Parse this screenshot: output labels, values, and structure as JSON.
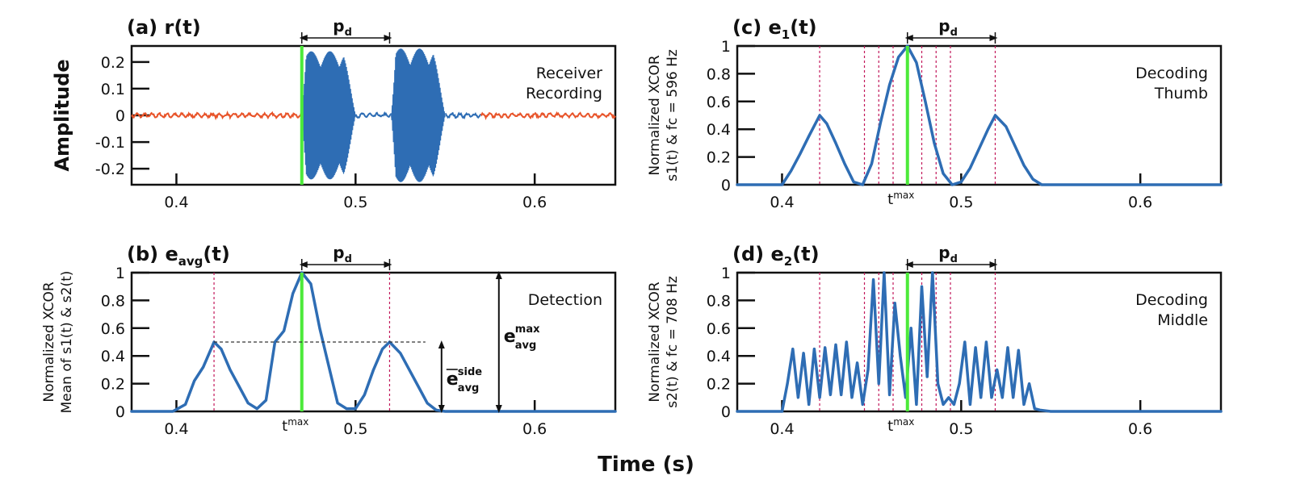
{
  "figure": {
    "xlabel": "Time (s)"
  },
  "chart_data": [
    {
      "id": "a",
      "type": "line",
      "title": "(a) r(t)",
      "ylabel_lines": [
        "Amplitude"
      ],
      "annotation_lines": [
        "Receiver",
        "Recording"
      ],
      "xlim": [
        0.375,
        0.645
      ],
      "ylim": [
        -0.26,
        0.26
      ],
      "xticks": [
        0.4,
        0.5,
        0.6
      ],
      "xtick_labels": [
        "0.4",
        "0.5",
        "0.6"
      ],
      "yticks": [
        0.2,
        0.1,
        0,
        -0.1,
        -0.2
      ],
      "ytick_labels": [
        "0.2",
        "0.1",
        "0",
        "-0.1",
        "-0.2"
      ],
      "onset_time": 0.47,
      "pd_label": "p",
      "pd_sub": "d",
      "pd_range": [
        0.47,
        0.519
      ],
      "colors": {
        "noise": "#e8542a",
        "signal": "#2e6db4",
        "marker": "#4cea3a"
      },
      "series": [
        {
          "segment": "noise",
          "x_range": [
            0.375,
            0.47
          ],
          "amplitude": 0.01
        },
        {
          "segment": "burst",
          "x_range": [
            0.47,
            0.5
          ],
          "amplitude": 0.24
        },
        {
          "segment": "gap",
          "x_range": [
            0.5,
            0.52
          ],
          "amplitude": 0.01
        },
        {
          "segment": "burst",
          "x_range": [
            0.52,
            0.55
          ],
          "amplitude": 0.25
        },
        {
          "segment": "tail",
          "x_range": [
            0.55,
            0.57
          ],
          "amplitude": 0.01
        },
        {
          "segment": "noise",
          "x_range": [
            0.57,
            0.645
          ],
          "amplitude": 0.01
        }
      ]
    },
    {
      "id": "b",
      "type": "line",
      "title": "(b) e",
      "title_sub": "avg",
      "title_tail": "(t)",
      "ylabel_lines": [
        "Normalized XCOR",
        "Mean of s1(t) & s2(t)"
      ],
      "annotation_lines": [
        "Detection"
      ],
      "xlim": [
        0.375,
        0.645
      ],
      "ylim": [
        0,
        1
      ],
      "xticks": [
        0.4,
        0.5,
        0.6
      ],
      "xtick_labels": [
        "0.4",
        "0.5",
        "0.6"
      ],
      "yticks": [
        1,
        0.8,
        0.6,
        0.4,
        0.2,
        0
      ],
      "ytick_labels": [
        "1",
        "0.8",
        "0.6",
        "0.4",
        "0.2",
        "0"
      ],
      "tmax": 0.47,
      "tmax_label": "t",
      "tmax_sup": "max",
      "pd_label": "p",
      "pd_sub": "d",
      "pd_range": [
        0.47,
        0.519
      ],
      "dashed_lines": [
        0.421,
        0.519
      ],
      "side_level": 0.5,
      "side_label": {
        "main": "e",
        "sup": "side",
        "sub": "avg"
      },
      "max_label": {
        "main": "e",
        "sup": "max",
        "sub": "avg"
      },
      "series": [
        {
          "x": [
            0.375,
            0.398,
            0.405,
            0.41,
            0.415,
            0.421,
            0.425,
            0.43,
            0.435,
            0.44,
            0.445,
            0.45,
            0.455,
            0.46,
            0.465,
            0.47,
            0.475,
            0.48,
            0.485,
            0.49,
            0.495,
            0.5,
            0.505,
            0.51,
            0.515,
            0.519,
            0.525,
            0.53,
            0.535,
            0.54,
            0.545,
            0.55,
            0.645
          ],
          "y": [
            0,
            0,
            0.05,
            0.22,
            0.32,
            0.5,
            0.45,
            0.3,
            0.18,
            0.06,
            0.02,
            0.08,
            0.5,
            0.58,
            0.85,
            1.0,
            0.92,
            0.6,
            0.33,
            0.06,
            0.02,
            0.02,
            0.12,
            0.3,
            0.45,
            0.5,
            0.42,
            0.3,
            0.18,
            0.06,
            0.01,
            0,
            0
          ]
        }
      ]
    },
    {
      "id": "c",
      "type": "line",
      "title": "(c) e",
      "title_sub": "1",
      "title_tail": "(t)",
      "ylabel_lines": [
        "Normalized XCOR",
        "s1(t) & fc = 596 Hz"
      ],
      "annotation_lines": [
        "Decoding",
        "Thumb"
      ],
      "xlim": [
        0.375,
        0.645
      ],
      "ylim": [
        0,
        1
      ],
      "xticks": [
        0.4,
        0.5,
        0.6
      ],
      "xtick_labels": [
        "0.4",
        "0.5",
        "0.6"
      ],
      "yticks": [
        1,
        0.8,
        0.6,
        0.4,
        0.2,
        0
      ],
      "ytick_labels": [
        "1",
        "0.8",
        "0.6",
        "0.4",
        "0.2",
        "0"
      ],
      "tmax": 0.47,
      "tmax_label": "t",
      "tmax_sup": "max",
      "pd_label": "p",
      "pd_sub": "d",
      "pd_range": [
        0.47,
        0.519
      ],
      "dashed_lines": [
        0.421,
        0.446,
        0.454,
        0.462,
        0.478,
        0.486,
        0.494,
        0.519
      ],
      "series": [
        {
          "x": [
            0.375,
            0.4,
            0.405,
            0.41,
            0.415,
            0.421,
            0.425,
            0.43,
            0.435,
            0.44,
            0.445,
            0.45,
            0.455,
            0.46,
            0.465,
            0.47,
            0.475,
            0.48,
            0.485,
            0.49,
            0.495,
            0.5,
            0.505,
            0.51,
            0.515,
            0.519,
            0.525,
            0.53,
            0.535,
            0.54,
            0.545,
            0.645
          ],
          "y": [
            0,
            0,
            0.1,
            0.22,
            0.35,
            0.5,
            0.44,
            0.3,
            0.15,
            0.02,
            0,
            0.15,
            0.45,
            0.72,
            0.92,
            1.0,
            0.88,
            0.6,
            0.3,
            0.08,
            0,
            0.02,
            0.12,
            0.26,
            0.4,
            0.5,
            0.42,
            0.28,
            0.14,
            0.04,
            0,
            0
          ]
        }
      ]
    },
    {
      "id": "d",
      "type": "line",
      "title": "(d) e",
      "title_sub": "2",
      "title_tail": "(t)",
      "ylabel_lines": [
        "Normalized XCOR",
        "s2(t) & fc = 708 Hz"
      ],
      "annotation_lines": [
        "Decoding",
        "Middle"
      ],
      "xlim": [
        0.375,
        0.645
      ],
      "ylim": [
        0,
        1
      ],
      "xticks": [
        0.4,
        0.5,
        0.6
      ],
      "xtick_labels": [
        "0.4",
        "0.5",
        "0.6"
      ],
      "yticks": [
        1,
        0.8,
        0.6,
        0.4,
        0.2,
        0
      ],
      "ytick_labels": [
        "1",
        "0.8",
        "0.6",
        "0.4",
        "0.2",
        "0"
      ],
      "tmax": 0.47,
      "tmax_label": "t",
      "tmax_sup": "max",
      "pd_label": "p",
      "pd_sub": "d",
      "pd_range": [
        0.47,
        0.519
      ],
      "dashed_lines": [
        0.421,
        0.446,
        0.454,
        0.462,
        0.478,
        0.486,
        0.494,
        0.519
      ],
      "series": [
        {
          "x": [
            0.375,
            0.4,
            0.403,
            0.406,
            0.409,
            0.412,
            0.415,
            0.418,
            0.421,
            0.424,
            0.427,
            0.43,
            0.433,
            0.436,
            0.439,
            0.442,
            0.445,
            0.448,
            0.451,
            0.454,
            0.457,
            0.46,
            0.463,
            0.466,
            0.469,
            0.472,
            0.475,
            0.478,
            0.481,
            0.484,
            0.487,
            0.49,
            0.493,
            0.496,
            0.499,
            0.502,
            0.505,
            0.508,
            0.511,
            0.514,
            0.517,
            0.52,
            0.523,
            0.526,
            0.529,
            0.532,
            0.535,
            0.538,
            0.541,
            0.544,
            0.55,
            0.645
          ],
          "y": [
            0,
            0,
            0.2,
            0.45,
            0.1,
            0.42,
            0.05,
            0.45,
            0.1,
            0.46,
            0.12,
            0.48,
            0.12,
            0.5,
            0.1,
            0.35,
            0.05,
            0.3,
            0.95,
            0.2,
            1.0,
            0.12,
            0.78,
            0.4,
            0.1,
            0.6,
            0.05,
            0.9,
            0.25,
            1.0,
            0.2,
            0.05,
            0.1,
            0.05,
            0.2,
            0.5,
            0.05,
            0.46,
            0.1,
            0.5,
            0.1,
            0.3,
            0.1,
            0.46,
            0.1,
            0.44,
            0.05,
            0.2,
            0.02,
            0.01,
            0,
            0
          ]
        }
      ]
    }
  ]
}
